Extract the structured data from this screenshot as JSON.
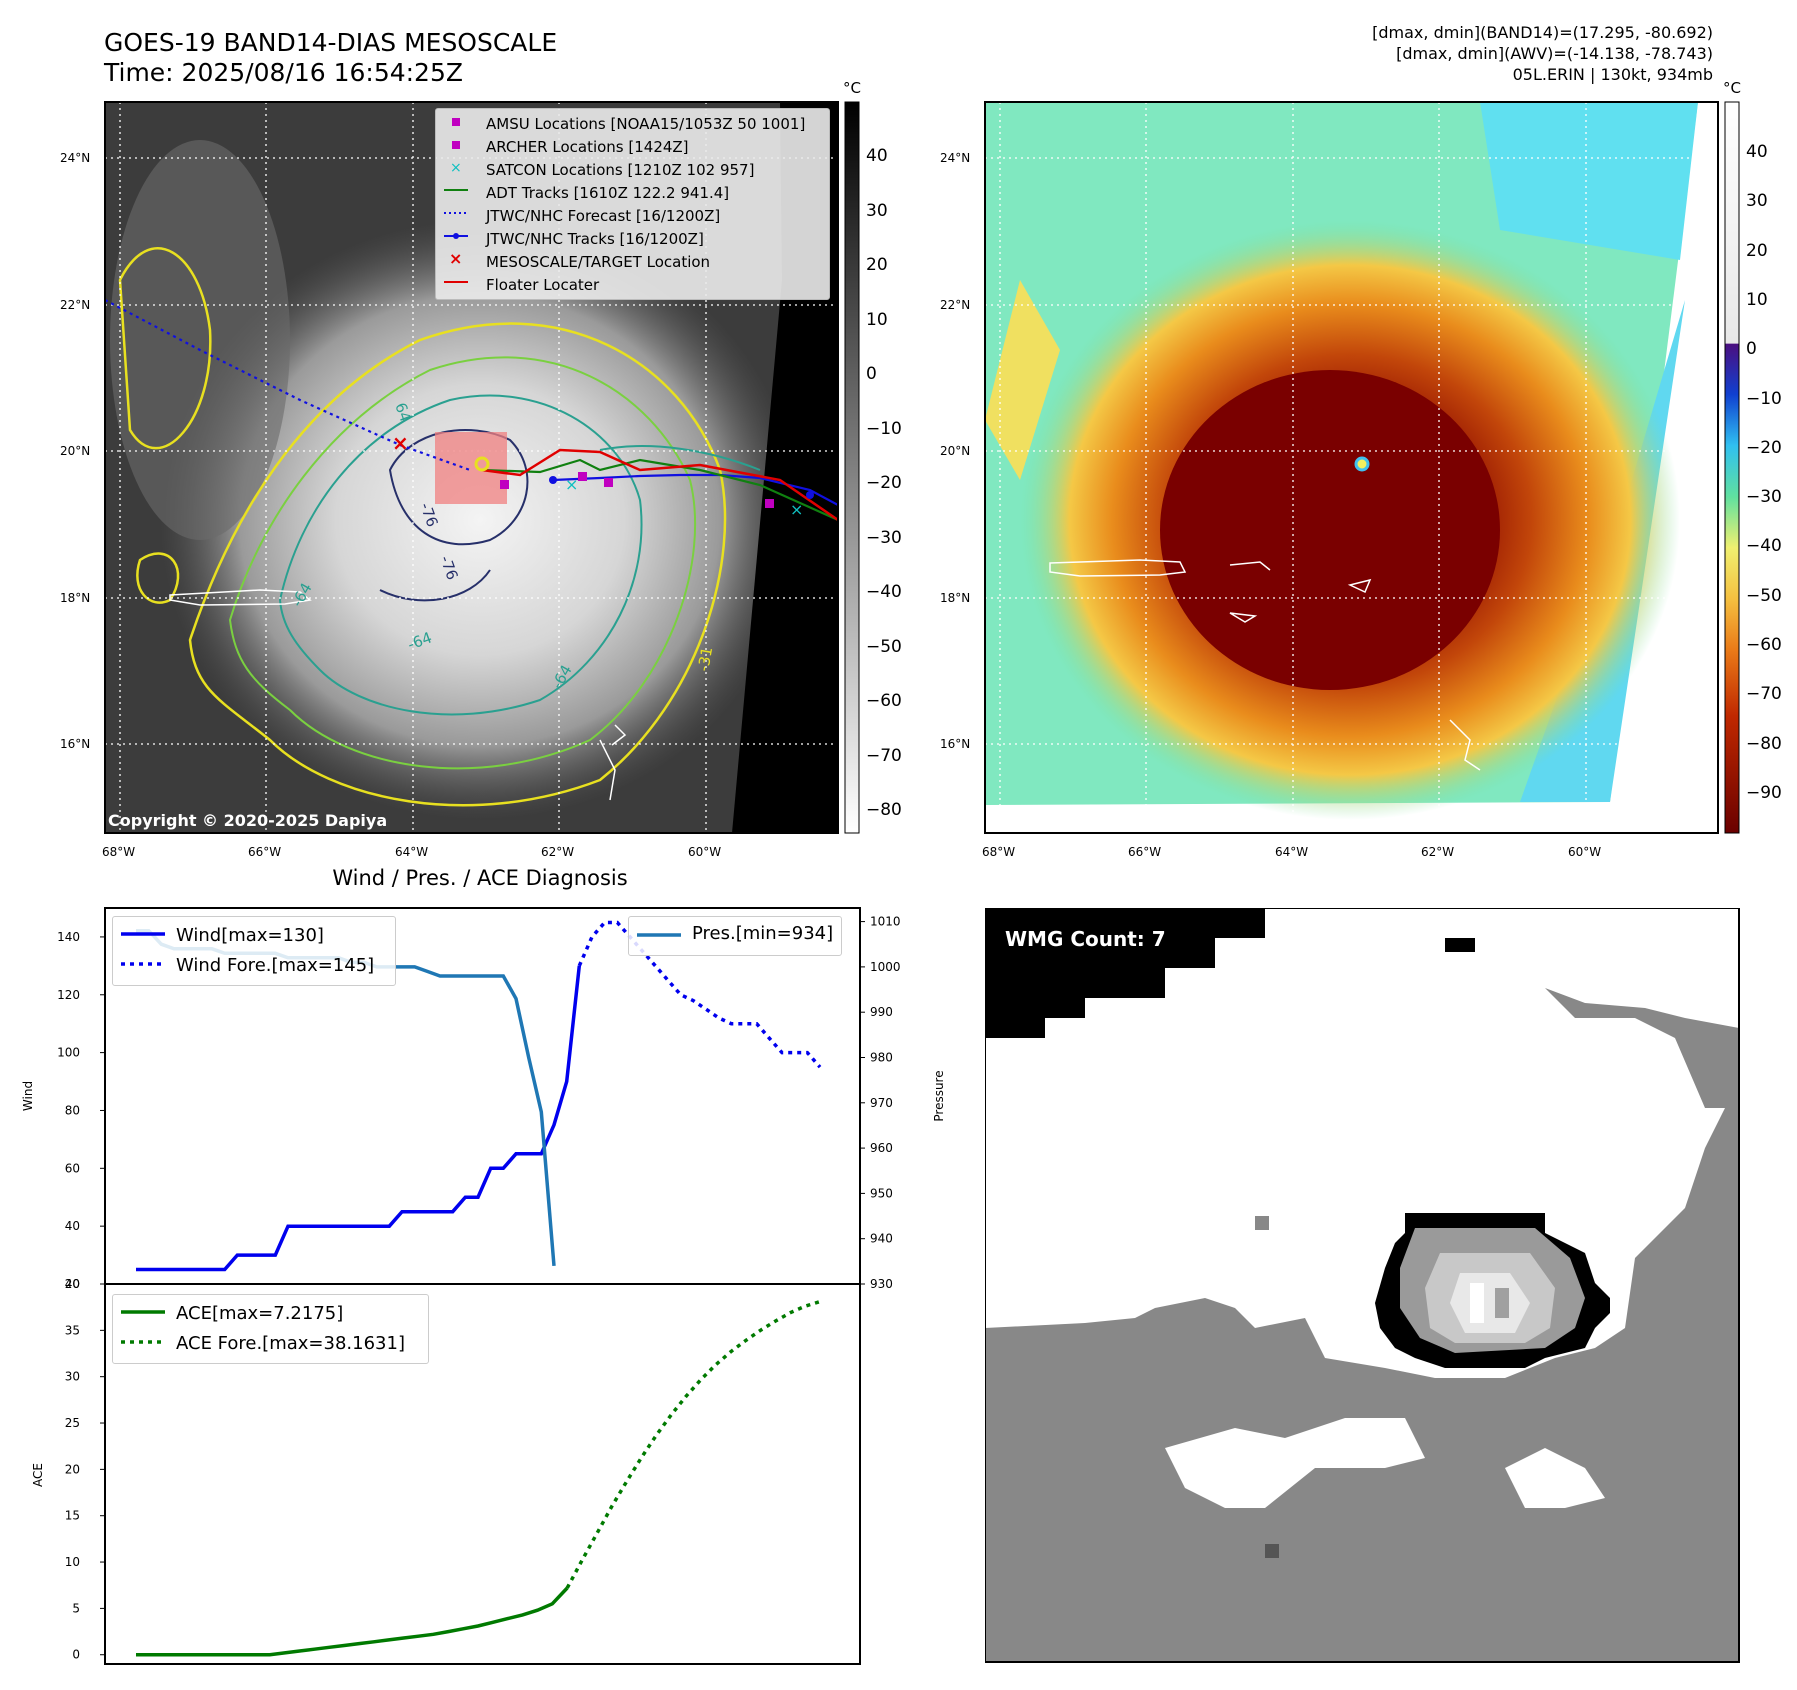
{
  "header": {
    "title": "GOES-19 BAND14-DIAS MESOSCALE",
    "time": "Time: 2025/08/16 16:54:25Z",
    "dmax_band14": "[dmax, dmin](BAND14)=(17.295, -80.692)",
    "dmax_awv": "[dmax, dmin](AWV)=(-14.138, -78.743)",
    "storm": "05L.ERIN | 130kt, 934mb"
  },
  "map": {
    "lat_labels": [
      "24°N",
      "22°N",
      "20°N",
      "18°N",
      "16°N"
    ],
    "lon_labels": [
      "68°W",
      "66°W",
      "64°W",
      "62°W",
      "60°W"
    ],
    "contour_labels": [
      "64",
      "-76",
      "-76",
      "-64",
      "-64",
      "-31",
      "-64"
    ],
    "copyright": "Copyright © 2020-2025 Dapiya",
    "legend": [
      "AMSU Locations [NOAA15/1053Z 50 1001]",
      "ARCHER Locations [1424Z]",
      "SATCON Locations [1210Z 102 957]",
      "ADT Tracks [1610Z 122.2 941.4]",
      "JTWC/NHC Forecast [16/1200Z]",
      "JTWC/NHC Tracks [16/1200Z]",
      "MESOSCALE/TARGET Location",
      "Floater Locater"
    ]
  },
  "colorbar_gray": {
    "unit": "°C",
    "ticks": [
      "40",
      "30",
      "20",
      "10",
      "0",
      "−10",
      "−20",
      "−30",
      "−40",
      "−50",
      "−60",
      "−70",
      "−80"
    ]
  },
  "colorbar_color": {
    "unit": "°C",
    "ticks": [
      "40",
      "30",
      "20",
      "10",
      "0",
      "−10",
      "−20",
      "−30",
      "−40",
      "−50",
      "−60",
      "−70",
      "−80",
      "−90"
    ]
  },
  "chart_data": [
    {
      "type": "line",
      "title": "Wind / Pres. / ACE Diagnosis",
      "ylabel": "Wind",
      "ylabel_right": "Pressure",
      "ylim": [
        20,
        150
      ],
      "ylim_right": [
        930,
        1013
      ],
      "x_count": 32,
      "series": [
        {
          "name": "Wind[max=130]",
          "values": [
            25,
            25,
            25,
            25,
            25,
            25,
            25,
            25,
            30,
            30,
            30,
            30,
            40,
            40,
            40,
            40,
            40,
            40,
            40,
            40,
            40,
            45,
            45,
            45,
            45,
            45,
            50,
            50,
            60,
            60,
            65,
            65,
            65,
            75,
            90,
            130
          ]
        },
        {
          "name": "Wind Fore.[max=145]",
          "values": [
            130,
            140,
            145,
            145,
            140,
            135,
            130,
            125,
            120,
            118,
            115,
            112,
            110,
            110,
            110,
            105,
            100,
            100,
            100,
            95
          ]
        },
        {
          "name": "Pres.[min=934]",
          "values": [
            1008,
            1008,
            1005,
            1004,
            1004,
            1004,
            1004,
            1003,
            1003,
            1003,
            1003,
            1003,
            1002,
            1002,
            1002,
            1002,
            1002,
            1001,
            1001,
            1000,
            1000,
            1000,
            1000,
            999,
            998,
            998,
            998,
            998,
            998,
            998,
            993,
            980,
            968,
            934
          ]
        }
      ],
      "yticks": [
        "20",
        "40",
        "60",
        "80",
        "100",
        "120",
        "140"
      ],
      "yticks_right": [
        "930",
        "940",
        "950",
        "960",
        "970",
        "980",
        "990",
        "1000",
        "1010"
      ]
    },
    {
      "type": "line",
      "ylabel": "ACE",
      "ylim": [
        -1,
        40
      ],
      "series": [
        {
          "name": "ACE[max=7.2175]",
          "values": [
            0,
            0,
            0,
            0,
            0,
            0,
            0,
            0,
            0,
            0,
            0.2,
            0.4,
            0.6,
            0.8,
            1.0,
            1.2,
            1.4,
            1.6,
            1.8,
            2.0,
            2.2,
            2.5,
            2.8,
            3.1,
            3.5,
            3.9,
            4.3,
            4.8,
            5.5,
            7.2
          ]
        },
        {
          "name": "ACE Fore.[max=38.1631]",
          "values": [
            7.2,
            10.2,
            13.1,
            16.0,
            18.7,
            21.3,
            23.7,
            25.9,
            27.9,
            29.7,
            31.3,
            32.7,
            33.9,
            35.0,
            36.0,
            36.9,
            37.6,
            38.1
          ]
        }
      ],
      "yticks": [
        "0",
        "5",
        "10",
        "15",
        "20",
        "25",
        "30",
        "35",
        "40"
      ]
    }
  ],
  "wmg": {
    "label": "WMG Count: 7"
  }
}
